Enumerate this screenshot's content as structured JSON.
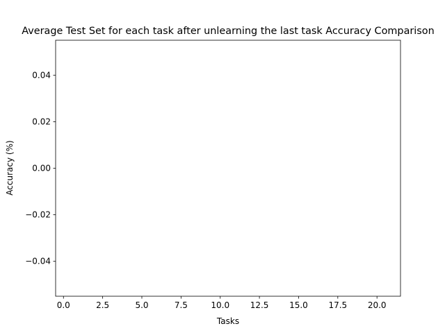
{
  "chart_data": {
    "type": "line",
    "title": "Average Test Set for each task after unlearning the last task Accuracy Comparison",
    "xlabel": "Tasks",
    "ylabel": "Accuracy (%)",
    "xlim": [
      -0.5,
      21.5
    ],
    "ylim": [
      -0.055,
      0.055
    ],
    "x_ticks": [
      0,
      2.5,
      5,
      7.5,
      10,
      12.5,
      15,
      17.5,
      20
    ],
    "x_tick_labels": [
      "0.0",
      "2.5",
      "5.0",
      "7.5",
      "10.0",
      "12.5",
      "15.0",
      "17.5",
      "20.0"
    ],
    "y_ticks": [
      0.04,
      0.02,
      0.0,
      -0.02,
      -0.04
    ],
    "y_tick_labels": [
      "0.04",
      "0.02",
      "0.00",
      "−0.02",
      "−0.04"
    ],
    "series": [],
    "grid": false,
    "legend": "none"
  }
}
